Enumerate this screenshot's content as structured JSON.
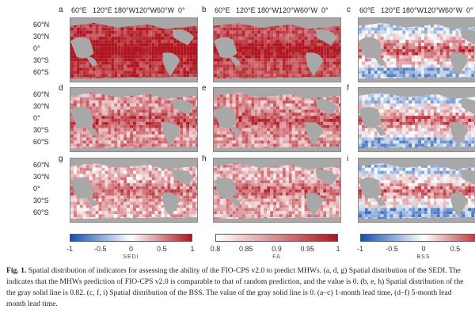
{
  "panels": {
    "letters": [
      "a",
      "b",
      "c",
      "d",
      "e",
      "f",
      "g",
      "h",
      "i"
    ],
    "lon_labels": [
      "60°E",
      "120°E",
      "180°W",
      "120°W",
      "60°W",
      "0°"
    ],
    "lat_labels": [
      "60°N",
      "30°N",
      "0°",
      "30°S",
      "60°S"
    ]
  },
  "colorbars": [
    {
      "title": "SEDI",
      "ticks": [
        "-1",
        "-0.5",
        "0",
        "0.5",
        "1"
      ],
      "range": [
        -1,
        1
      ],
      "colormap": "blue-white-red"
    },
    {
      "title": "FA",
      "ticks": [
        "0.8",
        "0.85",
        "0.9",
        "0.95",
        "1"
      ],
      "range": [
        0.8,
        1
      ],
      "colormap": "white-red"
    },
    {
      "title": "BSS",
      "ticks": [
        "-1",
        "-0.5",
        "0",
        "0.5"
      ],
      "range": [
        -1,
        1
      ],
      "colormap": "blue-white-red"
    }
  ],
  "caption": {
    "label": "Fig. 1.",
    "lines": [
      "Spatial distribution of indicators for assessing the ability of the FIO-CPS v2.0 to predict MHWs. (a, d, g) Spatial distribution of the SEDI. The",
      "indicates that the MHWs prediction of FIO-CPS v2.0 is comparable to that of random prediction, and the value is 0. (b, e, h) Spatial distribution of the",
      "the gray solid line is 0.82. (c, f, i) Spatial distribution of the BSS. The value of the gray solid line is 0. (a–c) 1-month lead time, (d–f) 5-month lead",
      "month lead time."
    ]
  },
  "colors": {
    "land": "#a8a8a8",
    "strong_red": "#c0282c",
    "light_red": "#f0b4b0",
    "blue": "#4a7fd0"
  }
}
